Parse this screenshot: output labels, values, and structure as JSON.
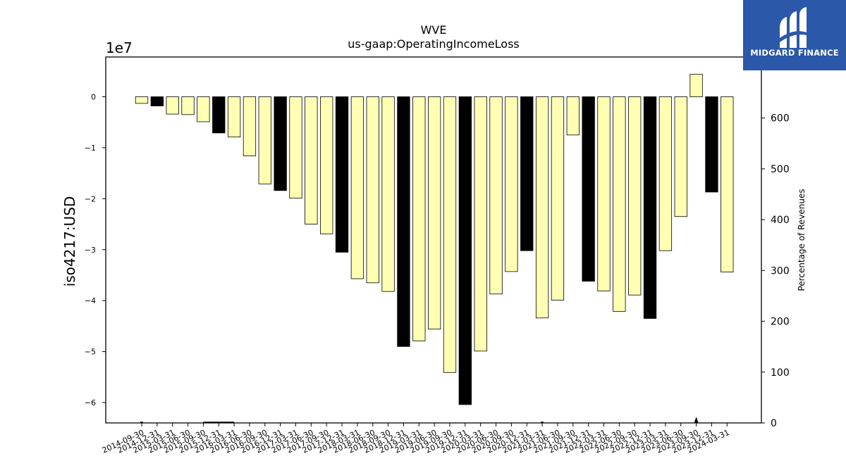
{
  "brand": {
    "name": "MIDGARD FINANCE",
    "bg": "#2b58a8"
  },
  "chart_data": {
    "type": "bar",
    "title": "WVE",
    "subtitle": "us-gaap:OperatingIncomeLoss",
    "ylabel": "iso4217:USD",
    "y2label": "Percentage of Revenues",
    "offset_label": "1e7",
    "ylim": [
      -6.4,
      0.78
    ],
    "y2lim": [
      0,
      720
    ],
    "yticks": [
      0,
      -1,
      -2,
      -3,
      -4,
      -5,
      -6
    ],
    "y2ticks": [
      0,
      100,
      200,
      300,
      400,
      500,
      600
    ],
    "colors": {
      "quarter": "#ffffb3",
      "annual": "#000000",
      "edge": "#000000"
    },
    "categories": [
      "2014-09-30",
      "2014-12-31",
      "2015-03-31",
      "2015-06-30",
      "2015-09-30",
      "2015-12-31",
      "2016-03-31",
      "2016-06-30",
      "2016-09-30",
      "2016-12-31",
      "2017-03-31",
      "2017-06-30",
      "2017-09-30",
      "2017-12-31",
      "2018-03-31",
      "2018-06-30",
      "2018-09-30",
      "2018-12-31",
      "2019-03-31",
      "2019-06-30",
      "2019-09-30",
      "2019-12-31",
      "2020-03-31",
      "2020-06-30",
      "2020-09-30",
      "2020-12-31",
      "2021-03-31",
      "2021-06-30",
      "2021-09-30",
      "2021-12-31",
      "2022-03-31",
      "2022-06-30",
      "2022-09-30",
      "2022-12-31",
      "2023-03-31",
      "2023-06-30",
      "2023-09-30",
      "2023-12-31",
      "2024-03-31"
    ],
    "values": [
      -0.13,
      -0.18,
      -0.34,
      -0.35,
      -0.49,
      -0.71,
      -0.79,
      -1.16,
      -1.71,
      -1.84,
      -1.99,
      -2.5,
      -2.69,
      -3.05,
      -3.57,
      -3.65,
      -3.82,
      -4.9,
      -4.79,
      -4.56,
      -5.41,
      -6.04,
      -4.99,
      -3.87,
      -3.43,
      -3.02,
      -4.34,
      -3.99,
      -0.75,
      -3.62,
      -3.81,
      -4.21,
      -3.89,
      -4.35,
      -3.02,
      -2.35,
      0.44,
      -1.87,
      -3.44
    ],
    "bar_type": [
      "q",
      "a",
      "q",
      "q",
      "q",
      "a",
      "q",
      "q",
      "q",
      "a",
      "q",
      "q",
      "q",
      "a",
      "q",
      "q",
      "q",
      "a",
      "q",
      "q",
      "q",
      "a",
      "q",
      "q",
      "q",
      "a",
      "q",
      "q",
      "q",
      "a",
      "q",
      "q",
      "q",
      "a",
      "q",
      "q",
      "q",
      "a",
      "q"
    ],
    "percentage_of_revenues": [
      0,
      null,
      null,
      null,
      1,
      1,
      1,
      null,
      null,
      null,
      null,
      null,
      null,
      null,
      null,
      null,
      null,
      null,
      null,
      null,
      null,
      null,
      null,
      null,
      null,
      null,
      0,
      null,
      null,
      null,
      null,
      null,
      null,
      null,
      null,
      null,
      12,
      null,
      null
    ]
  }
}
